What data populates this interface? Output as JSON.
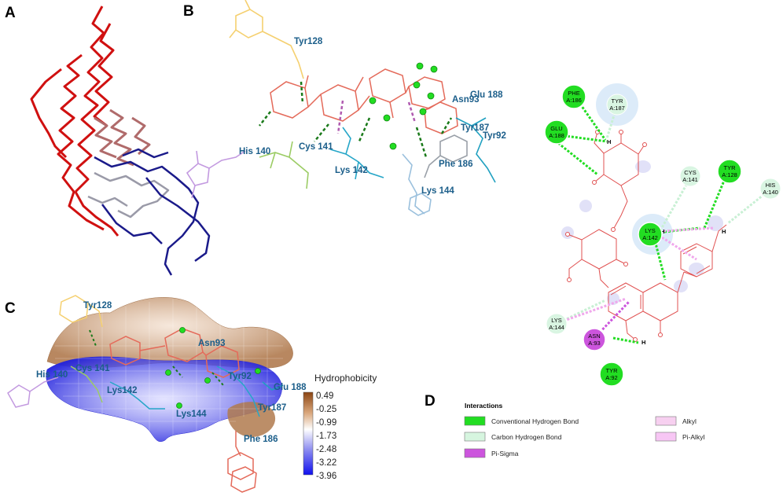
{
  "panels": {
    "a": "A",
    "b": "B",
    "c": "C",
    "d": "D"
  },
  "panel_b": {
    "residues": [
      "Tyr128",
      "Glu 188",
      "Asn93",
      "Tyr187",
      "Tyr92",
      "His 140",
      "Cys 141",
      "Lys 142",
      "Phe 186",
      "Lys 144"
    ]
  },
  "panel_c": {
    "residues": [
      "Tyr128",
      "Asn93",
      "Cys 141",
      "His 140",
      "Lys142",
      "Tyr92",
      "Glu 188",
      "Tyr187",
      "Lys144",
      "Phe 186"
    ],
    "hydrophobicity": {
      "title": "Hydrophobicity",
      "ticks": [
        "0.49",
        "-0.25",
        "-0.99",
        "-1.73",
        "-2.48",
        "-3.22",
        "-3.96"
      ],
      "colors": {
        "high": "#8b4513",
        "mid": "#ffffff",
        "low": "#1010ee"
      }
    }
  },
  "panel_2d": {
    "nodes": [
      {
        "id": "phe186",
        "line1": "PHE",
        "line2": "A:186",
        "type": "conventional"
      },
      {
        "id": "tyr187",
        "line1": "TYR",
        "line2": "A:187",
        "type": "carbon"
      },
      {
        "id": "glu188",
        "line1": "GLU",
        "line2": "A:188",
        "type": "conventional"
      },
      {
        "id": "cys141",
        "line1": "CYS",
        "line2": "A:141",
        "type": "carbon"
      },
      {
        "id": "tyr128",
        "line1": "TYR",
        "line2": "A:128",
        "type": "conventional"
      },
      {
        "id": "his140",
        "line1": "HIS",
        "line2": "A:140",
        "type": "carbon"
      },
      {
        "id": "lys142",
        "line1": "LYS",
        "line2": "A:142",
        "type": "conventional"
      },
      {
        "id": "lys144",
        "line1": "LYS",
        "line2": "A:144",
        "type": "carbon"
      },
      {
        "id": "asn93",
        "line1": "ASN",
        "line2": "A:93",
        "type": "pisigma"
      },
      {
        "id": "tyr92",
        "line1": "TYR",
        "line2": "A:92",
        "type": "conventional"
      }
    ],
    "h_label": "H",
    "o_label": "O"
  },
  "legend": {
    "title": "Interactions",
    "items": [
      {
        "label": "Conventional Hydrogen Bond",
        "color": "#22dd22"
      },
      {
        "label": "Carbon Hydrogen Bond",
        "color": "#d6f5df"
      },
      {
        "label": "Pi-Sigma",
        "color": "#cc55dd"
      },
      {
        "label": "Alkyl",
        "color": "#f7d0f0"
      },
      {
        "label": "Pi-Alkyl",
        "color": "#f7c6f4"
      }
    ]
  }
}
